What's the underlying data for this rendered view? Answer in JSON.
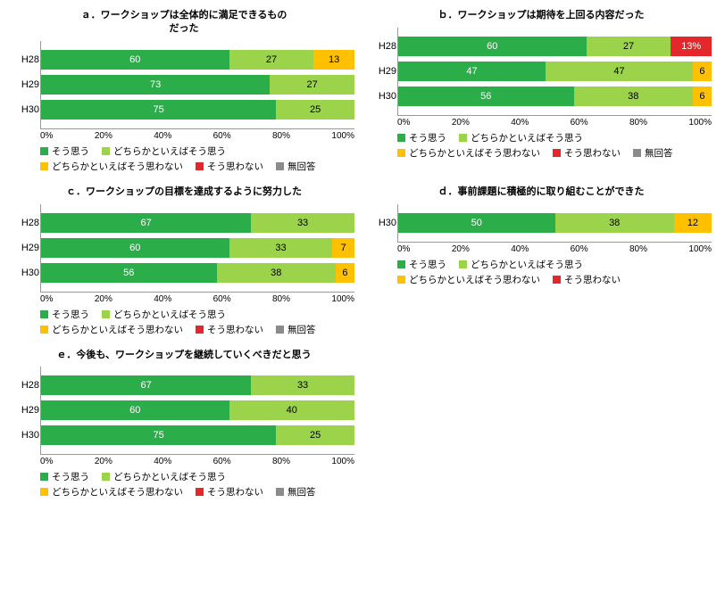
{
  "colors": {
    "c1": "#2bae4a",
    "c2": "#9bd44b",
    "c3": "#ffc000",
    "c4": "#e3272a",
    "c5": "#8b8b8b",
    "grid": "#bfbfbf",
    "axis_text": "#000000",
    "seg_text_dark": "#ffffff",
    "seg_text_light": "#000000"
  },
  "legend_labels": {
    "l1": "そう思う",
    "l2": "どちらかといえばそう思う",
    "l3": "どちらかといえばそう思わない",
    "l4": "そう思わない",
    "l5": "無回答"
  },
  "xaxis_ticks": [
    "0%",
    "20%",
    "40%",
    "60%",
    "80%",
    "100%"
  ],
  "panels": {
    "a": {
      "title": "ａ．ワークショップは全体的に満足できるもの\nだった",
      "show_l5": true,
      "rows": [
        {
          "label": "H28",
          "segs": [
            {
              "v": 60,
              "c": "c1",
              "t": "60"
            },
            {
              "v": 27,
              "c": "c2",
              "t": "27",
              "lt": true
            },
            {
              "v": 13,
              "c": "c3",
              "t": "13",
              "lt": true
            }
          ]
        },
        {
          "label": "H29",
          "segs": [
            {
              "v": 73,
              "c": "c1",
              "t": "73"
            },
            {
              "v": 27,
              "c": "c2",
              "t": "27",
              "lt": true
            }
          ]
        },
        {
          "label": "H30",
          "segs": [
            {
              "v": 75,
              "c": "c1",
              "t": "75"
            },
            {
              "v": 25,
              "c": "c2",
              "t": "25",
              "lt": true
            }
          ]
        }
      ]
    },
    "b": {
      "title": "ｂ．ワークショップは期待を上回る内容だった",
      "show_l5": true,
      "rows": [
        {
          "label": "H28",
          "segs": [
            {
              "v": 60,
              "c": "c1",
              "t": "60"
            },
            {
              "v": 27,
              "c": "c2",
              "t": "27",
              "lt": true
            },
            {
              "v": 13,
              "c": "c4",
              "t": "13%"
            }
          ]
        },
        {
          "label": "H29",
          "segs": [
            {
              "v": 47,
              "c": "c1",
              "t": "47"
            },
            {
              "v": 47,
              "c": "c2",
              "t": "47",
              "lt": true
            },
            {
              "v": 6,
              "c": "c3",
              "t": "6",
              "lt": true
            }
          ]
        },
        {
          "label": "H30",
          "segs": [
            {
              "v": 56,
              "c": "c1",
              "t": "56"
            },
            {
              "v": 38,
              "c": "c2",
              "t": "38",
              "lt": true
            },
            {
              "v": 6,
              "c": "c3",
              "t": "6",
              "lt": true
            }
          ]
        }
      ]
    },
    "c": {
      "title": "ｃ．ワークショップの目標を達成するように努力した",
      "show_l5": true,
      "rows": [
        {
          "label": "H28",
          "segs": [
            {
              "v": 67,
              "c": "c1",
              "t": "67"
            },
            {
              "v": 33,
              "c": "c2",
              "t": "33",
              "lt": true
            }
          ]
        },
        {
          "label": "H29",
          "segs": [
            {
              "v": 60,
              "c": "c1",
              "t": "60"
            },
            {
              "v": 33,
              "c": "c2",
              "t": "33",
              "lt": true
            },
            {
              "v": 7,
              "c": "c3",
              "t": "7",
              "lt": true
            }
          ]
        },
        {
          "label": "H30",
          "segs": [
            {
              "v": 56,
              "c": "c1",
              "t": "56"
            },
            {
              "v": 38,
              "c": "c2",
              "t": "38",
              "lt": true
            },
            {
              "v": 6,
              "c": "c3",
              "t": "6",
              "lt": true
            }
          ]
        }
      ]
    },
    "d": {
      "title": "ｄ．事前課題に積極的に取り組むことができた",
      "show_l5": false,
      "rows": [
        {
          "label": "H30",
          "segs": [
            {
              "v": 50,
              "c": "c1",
              "t": "50"
            },
            {
              "v": 38,
              "c": "c2",
              "t": "38",
              "lt": true
            },
            {
              "v": 12,
              "c": "c3",
              "t": "12",
              "lt": true
            }
          ]
        }
      ]
    },
    "e": {
      "title": "ｅ．今後も、ワークショップを継続していくべきだと思う",
      "show_l5": true,
      "rows": [
        {
          "label": "H28",
          "segs": [
            {
              "v": 67,
              "c": "c1",
              "t": "67"
            },
            {
              "v": 33,
              "c": "c2",
              "t": "33",
              "lt": true
            }
          ]
        },
        {
          "label": "H29",
          "segs": [
            {
              "v": 60,
              "c": "c1",
              "t": "60"
            },
            {
              "v": 40,
              "c": "c2",
              "t": "40",
              "lt": true
            }
          ]
        },
        {
          "label": "H30",
          "segs": [
            {
              "v": 75,
              "c": "c1",
              "t": "75"
            },
            {
              "v": 25,
              "c": "c2",
              "t": "25",
              "lt": true
            }
          ]
        }
      ]
    }
  }
}
